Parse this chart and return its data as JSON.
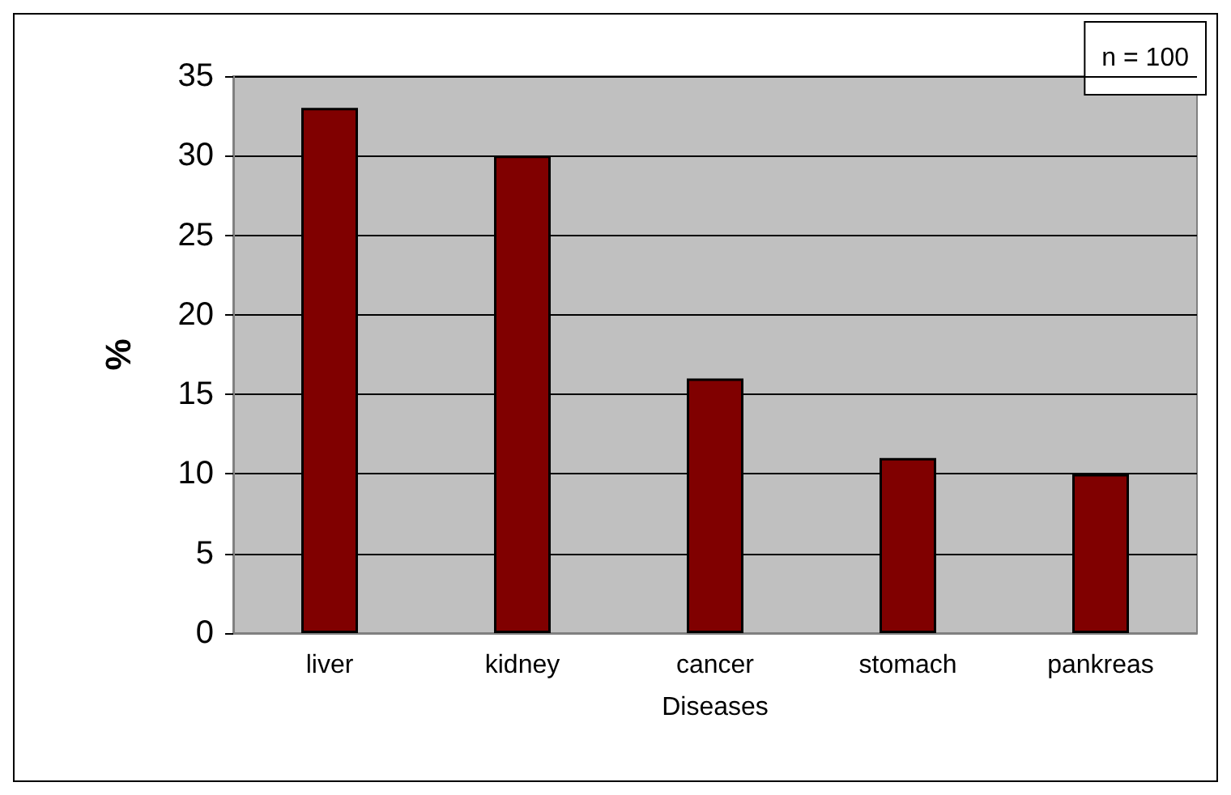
{
  "chart_data": {
    "type": "bar",
    "xlabel": "Diseases",
    "ylabel": "%",
    "categories": [
      "liver",
      "kidney",
      "cancer",
      "stomach",
      "pankreas"
    ],
    "values": [
      33,
      30,
      16,
      11,
      10
    ],
    "color": "#800000",
    "ylim": [
      0,
      35
    ],
    "yticks": [
      0,
      5,
      10,
      15,
      20,
      25,
      30,
      35
    ],
    "grid": "y",
    "annotations": [
      "n = 100"
    ]
  }
}
